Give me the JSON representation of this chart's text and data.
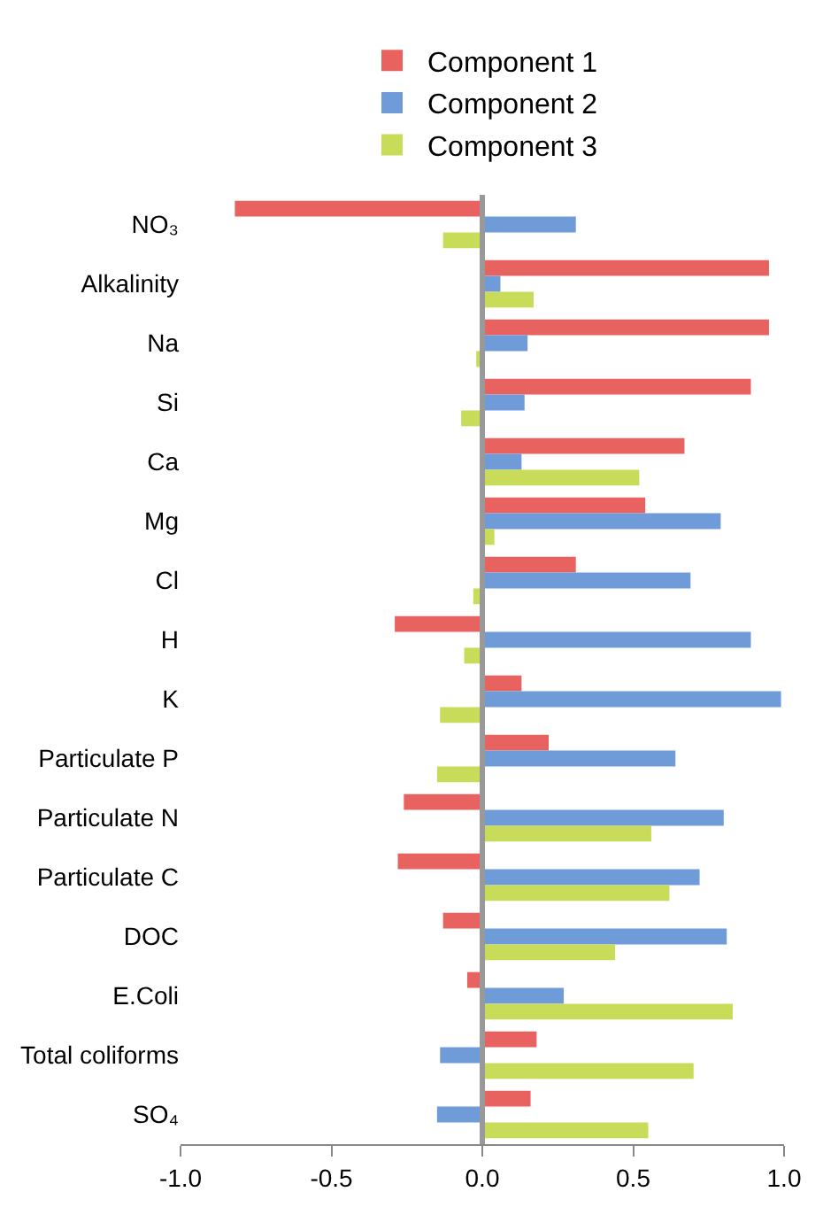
{
  "chart_data": {
    "type": "bar",
    "orientation": "horizontal",
    "legend": "top",
    "categories": [
      "NO₃",
      "Alkalinity",
      "Na",
      "Si",
      "Ca",
      "Mg",
      "Cl",
      "H",
      "K",
      "Particulate P",
      "Particulate N",
      "Particulate C",
      "DOC",
      "E.Coli",
      "Total coliforms",
      "SO₄"
    ],
    "series": [
      {
        "name": "Component 1",
        "color": "#e8625f",
        "values": [
          -0.82,
          0.95,
          0.95,
          0.89,
          0.67,
          0.54,
          0.31,
          -0.29,
          0.13,
          0.22,
          -0.26,
          -0.28,
          -0.13,
          -0.05,
          0.18,
          0.16
        ]
      },
      {
        "name": "Component 2",
        "color": "#6f9bd8",
        "values": [
          0.31,
          0.06,
          0.15,
          0.14,
          0.13,
          0.79,
          0.69,
          0.89,
          0.99,
          0.64,
          0.8,
          0.72,
          0.81,
          0.27,
          -0.14,
          -0.15
        ]
      },
      {
        "name": "Component 3",
        "color": "#c8dc5a",
        "values": [
          -0.13,
          0.17,
          -0.02,
          -0.07,
          0.52,
          0.04,
          -0.03,
          -0.06,
          -0.14,
          -0.15,
          0.56,
          0.62,
          0.44,
          0.83,
          0.7,
          0.55
        ]
      }
    ],
    "ref_lines": [
      {
        "axis": "x",
        "value": 0,
        "color": "#999999"
      }
    ],
    "xlim": [
      -1.0,
      1.0
    ],
    "xticks": [
      {
        "value": -1,
        "label": "-1.0"
      },
      {
        "value": -0.5,
        "label": "-0.5"
      },
      {
        "value": 0,
        "label": "0.0"
      },
      {
        "value": 0.5,
        "label": "0.5"
      },
      {
        "value": 1,
        "label": "1.0"
      }
    ]
  }
}
